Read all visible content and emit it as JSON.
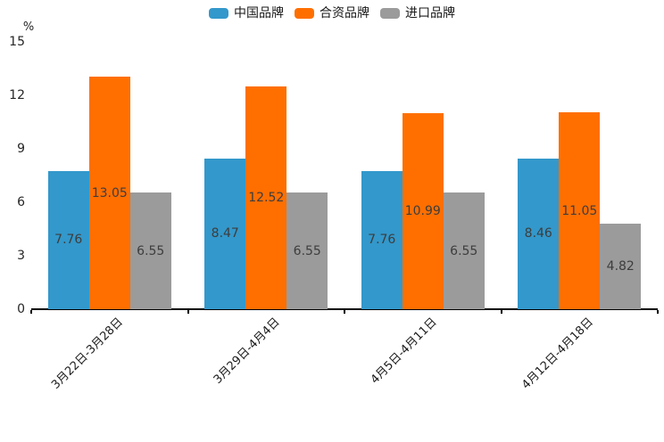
{
  "chart_data": {
    "type": "bar",
    "title": "",
    "unit_label": "%",
    "categories": [
      "3月22日-3月28日",
      "3月29日-4月4日",
      "4月5日-4月11日",
      "4月12日-4月18日"
    ],
    "series": [
      {
        "id": "china-brand",
        "name": "中国品牌",
        "color": "#3398CB",
        "values": [
          7.76,
          8.47,
          7.76,
          8.46
        ]
      },
      {
        "id": "joint-venture-brand",
        "name": "合资品牌",
        "color": "#FF6F00",
        "values": [
          13.05,
          12.52,
          10.99,
          11.05
        ]
      },
      {
        "id": "import-brand",
        "name": "进口品牌",
        "color": "#9B9B9B",
        "values": [
          6.55,
          6.55,
          6.55,
          4.82
        ]
      }
    ],
    "y_axis": {
      "min": 0,
      "max": 15,
      "ticks": [
        0,
        3,
        6,
        9,
        12,
        15
      ],
      "unit": "%"
    },
    "x_tick_rotation_deg": 45,
    "legend_position": "top-center",
    "grid": false,
    "value_label_position": "inside-center",
    "value_label_color": "#3D3D3D",
    "axis_color": "#000000",
    "background_color": "#FFFFFF"
  }
}
